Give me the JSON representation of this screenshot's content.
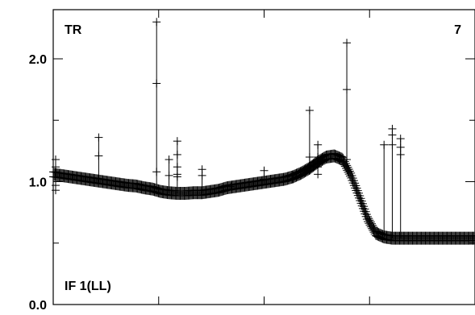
{
  "chart_data": {
    "type": "scatter",
    "title": "",
    "xlabel": "",
    "ylabel": "",
    "ylim": [
      0.0,
      2.4
    ],
    "yticks": [
      {
        "value": 0.0,
        "label": "0.0"
      },
      {
        "value": 1.0,
        "label": "1.0"
      },
      {
        "value": 2.0,
        "label": "2.0"
      }
    ],
    "x_tick_labels_shown": false,
    "grid": false,
    "legend": "none",
    "annotations": {
      "top_left": "TR",
      "top_right": "7",
      "bottom_left": "IF 1(LL)"
    },
    "marker": "plus",
    "series": [
      {
        "x": [
          0,
          10,
          20,
          30,
          40,
          50,
          60,
          70,
          80,
          90,
          100,
          110,
          120,
          130,
          140,
          150,
          160,
          170,
          180,
          190,
          200,
          210,
          220,
          230,
          240,
          250,
          260,
          270,
          280,
          290,
          300,
          310,
          320,
          330,
          340,
          350,
          360,
          370,
          380,
          390,
          400,
          410,
          420,
          430,
          440,
          450,
          460,
          470,
          480,
          490,
          500,
          510
        ],
        "values": [
          1.06,
          1.05,
          1.04,
          1.03,
          1.02,
          1.01,
          1.0,
          0.99,
          0.98,
          0.97,
          0.965,
          0.95,
          0.94,
          0.92,
          0.91,
          0.905,
          0.905,
          0.91,
          0.91,
          0.92,
          0.93,
          0.95,
          0.96,
          0.97,
          0.98,
          0.99,
          1.0,
          1.01,
          1.02,
          1.04,
          1.07,
          1.11,
          1.16,
          1.2,
          1.21,
          1.18,
          1.05,
          0.88,
          0.7,
          0.58,
          0.55,
          0.54,
          0.54,
          0.54,
          0.54,
          0.54,
          0.54,
          0.54,
          0.54,
          0.54,
          0.54,
          0.54
        ]
      }
    ],
    "outliers": [
      {
        "x": 55,
        "values": [
          1.21,
          1.36
        ]
      },
      {
        "x": 125,
        "values": [
          1.08,
          1.8,
          2.3
        ]
      },
      {
        "x": 140,
        "values": [
          1.05,
          1.18
        ]
      },
      {
        "x": 150,
        "values": [
          1.04,
          1.06,
          1.12,
          1.22,
          1.33
        ]
      },
      {
        "x": 180,
        "values": [
          1.05,
          1.1
        ]
      },
      {
        "x": 215,
        "values": [
          0.96
        ]
      },
      {
        "x": 255,
        "values": [
          1.02,
          1.09
        ]
      },
      {
        "x": 290,
        "values": [
          1.02,
          1.05
        ]
      },
      {
        "x": 310,
        "values": [
          1.09,
          1.2,
          1.58
        ]
      },
      {
        "x": 320,
        "values": [
          1.06,
          1.12,
          1.2,
          1.3
        ]
      },
      {
        "x": 355,
        "values": [
          1.18,
          1.75,
          2.13
        ]
      },
      {
        "x": 400,
        "values": [
          1.3
        ]
      },
      {
        "x": 410,
        "values": [
          1.3,
          1.38,
          1.43
        ]
      },
      {
        "x": 420,
        "values": [
          1.22,
          1.28,
          1.35
        ]
      }
    ]
  }
}
